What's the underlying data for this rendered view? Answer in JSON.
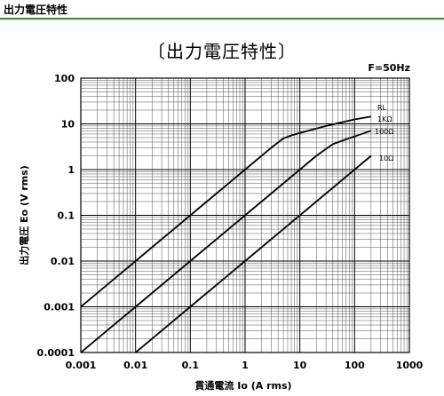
{
  "header": {
    "title": "出力電圧特性",
    "rule_color": "#2e8b2e"
  },
  "chart_data": {
    "type": "line",
    "title": "〔出力電圧特性〕",
    "condition": "F=50Hz",
    "xlabel": "貫通電流 Io (A rms)",
    "ylabel": "出力電圧 Eo (V rms)",
    "x_scale": "log",
    "y_scale": "log",
    "xlim": [
      0.001,
      1000
    ],
    "ylim": [
      0.0001,
      100
    ],
    "x_ticks": [
      "0.001",
      "0.01",
      "0.1",
      "1",
      "10",
      "100",
      "1000"
    ],
    "y_ticks": [
      "0.0001",
      "0.001",
      "0.01",
      "0.1",
      "1",
      "10",
      "100"
    ],
    "grid": true,
    "legend_title": "RL",
    "series": [
      {
        "name": "1KΩ",
        "x": [
          0.001,
          0.01,
          0.1,
          1,
          3,
          5,
          7,
          10,
          30,
          100,
          200
        ],
        "y": [
          0.001,
          0.01,
          0.1,
          1,
          3,
          4.8,
          5.6,
          6.3,
          9,
          12.5,
          14.5
        ]
      },
      {
        "name": "100Ω",
        "x": [
          0.001,
          0.002,
          0.003,
          0.005,
          0.01,
          0.1,
          1,
          10,
          20,
          40,
          70,
          100,
          200
        ],
        "y": [
          0.0001,
          0.0002,
          0.0003,
          0.0005,
          0.001,
          0.01,
          0.1,
          1,
          2,
          3.6,
          4.6,
          5.3,
          7.1
        ]
      },
      {
        "name": "10Ω",
        "x": [
          0.01,
          0.1,
          1,
          10,
          100,
          200
        ],
        "y": [
          0.0001,
          0.001,
          0.01,
          0.1,
          1,
          2
        ]
      }
    ]
  }
}
